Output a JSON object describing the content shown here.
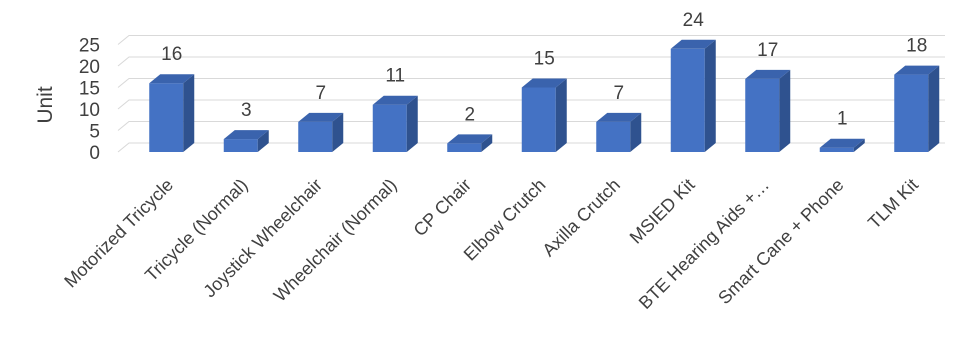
{
  "chart_data": {
    "type": "bar",
    "style": "3d-column",
    "title": "",
    "xlabel": "",
    "ylabel": "Unit",
    "ylim": [
      0,
      25
    ],
    "yticks": [
      0,
      5,
      10,
      15,
      20,
      25
    ],
    "grid": true,
    "legend": "none",
    "categories": [
      "Motorized Tricycle",
      "Tricycle (Normal)",
      "Joystick Wheelchair",
      "Wheelchair (Normal)",
      "CP Chair",
      "Elbow Crutch",
      "Axilla Crutch",
      "MSIED Kit",
      "BTE Hearing Aids +…",
      "Smart Cane + Phone",
      "TLM Kit"
    ],
    "values": [
      16,
      3,
      7,
      11,
      2,
      15,
      7,
      24,
      17,
      1,
      18
    ],
    "colors": {
      "front": "#4472c4",
      "side": "#2f528f",
      "top": "#3a63ad",
      "grid": "#d9d9d9",
      "text": "#404040"
    }
  }
}
